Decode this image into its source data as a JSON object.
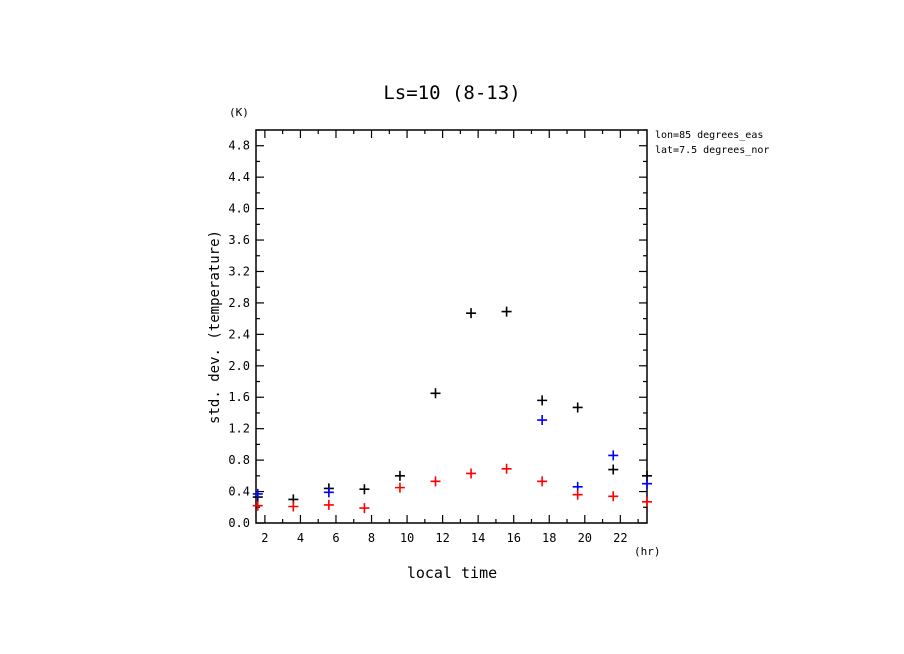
{
  "chart_data": {
    "type": "scatter",
    "title": "Ls=10 (8-13)",
    "xlabel": "local time",
    "ylabel": "std. dev. (temperature)",
    "x_unit": "(hr)",
    "y_unit": "(K)",
    "xlim": [
      1.5,
      23.5
    ],
    "ylim": [
      0,
      5.0
    ],
    "xticks": [
      2,
      4,
      6,
      8,
      10,
      12,
      14,
      16,
      18,
      20,
      22
    ],
    "yticks": [
      0.0,
      0.4,
      0.8,
      1.2,
      1.6,
      2.0,
      2.4,
      2.8,
      3.2,
      3.6,
      4.0,
      4.4,
      4.8
    ],
    "annotations": [
      "lon=85 degrees_eas",
      "lat=7.5 degrees_nor"
    ],
    "marker": "+",
    "series": [
      {
        "color": "#000000",
        "x": [
          1.6,
          3.6,
          5.6,
          7.6,
          9.6,
          11.6,
          13.6,
          15.6,
          17.6,
          19.6,
          21.6,
          23.5
        ],
        "values": [
          0.33,
          0.3,
          0.44,
          0.43,
          0.6,
          1.65,
          2.67,
          2.69,
          1.56,
          1.47,
          0.68,
          0.6
        ]
      },
      {
        "color": "#0000ff",
        "x": [
          1.6,
          5.6,
          17.6,
          19.6,
          21.6,
          23.5
        ],
        "values": [
          0.37,
          0.39,
          1.31,
          0.46,
          0.86,
          0.5
        ]
      },
      {
        "color": "#ff0000",
        "x": [
          1.6,
          3.6,
          5.6,
          7.6,
          9.6,
          11.6,
          13.6,
          15.6,
          17.6,
          19.6,
          21.6,
          23.5
        ],
        "values": [
          0.22,
          0.21,
          0.23,
          0.19,
          0.45,
          0.53,
          0.63,
          0.69,
          0.53,
          0.36,
          0.34,
          0.27
        ]
      }
    ]
  }
}
